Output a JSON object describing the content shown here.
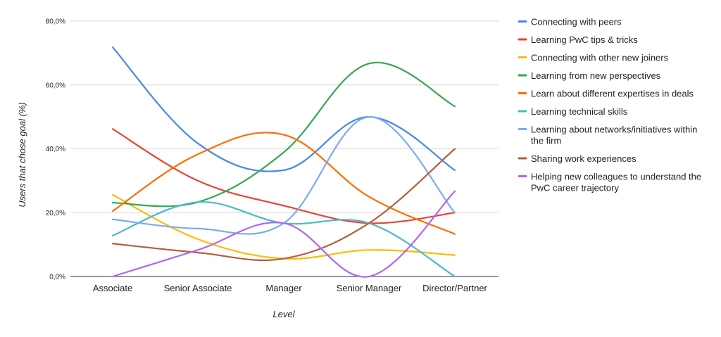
{
  "chart_data": {
    "type": "line",
    "categories": [
      "Associate",
      "Senior Associate",
      "Manager",
      "Senior Manager",
      "Director/Partner"
    ],
    "xlabel": "Level",
    "ylabel": "Users that chose goal (%)",
    "ylim": [
      0,
      80
    ],
    "yticks": [
      {
        "value": 0,
        "label": "0,0%"
      },
      {
        "value": 20,
        "label": "20,0%"
      },
      {
        "value": 40,
        "label": "40,0%"
      },
      {
        "value": 60,
        "label": "60,0%"
      },
      {
        "value": 80,
        "label": "80,0%"
      }
    ],
    "grid": true,
    "legend_position": "right",
    "smooth": true,
    "series": [
      {
        "name": "Connecting with peers",
        "color": "#4a86e8",
        "values": [
          71.8,
          41.7,
          33.3,
          50.0,
          33.3
        ]
      },
      {
        "name": "Learning PwC tips & tricks",
        "color": "#ea4335",
        "values": [
          46.2,
          30.0,
          22.2,
          16.7,
          20.0
        ]
      },
      {
        "name": "Connecting with other new joiners",
        "color": "#fbbc04",
        "values": [
          25.6,
          11.7,
          5.6,
          8.3,
          6.7
        ]
      },
      {
        "name": "Learning from new perspectives",
        "color": "#34a853",
        "values": [
          23.1,
          23.3,
          38.9,
          66.7,
          53.3
        ]
      },
      {
        "name": "Learn about different expertises in deals",
        "color": "#ff6d01",
        "values": [
          20.5,
          38.3,
          44.4,
          25.0,
          13.3
        ]
      },
      {
        "name": "Learning technical skills",
        "color": "#46bdc6",
        "values": [
          12.8,
          23.3,
          16.7,
          16.7,
          0.0
        ]
      },
      {
        "name": "Learning about networks/initiatives within the firm",
        "color": "#7baaf7",
        "values": [
          17.9,
          15.0,
          16.7,
          50.0,
          20.0
        ]
      },
      {
        "name": "Sharing work experiences",
        "color": "#b45f3a",
        "values": [
          10.3,
          7.5,
          5.6,
          16.7,
          40.0
        ]
      },
      {
        "name": "Helping new colleagues to understand the PwC career trajectory",
        "color": "#b465f0",
        "values": [
          0.0,
          8.3,
          16.7,
          0.0,
          26.7
        ]
      }
    ]
  }
}
